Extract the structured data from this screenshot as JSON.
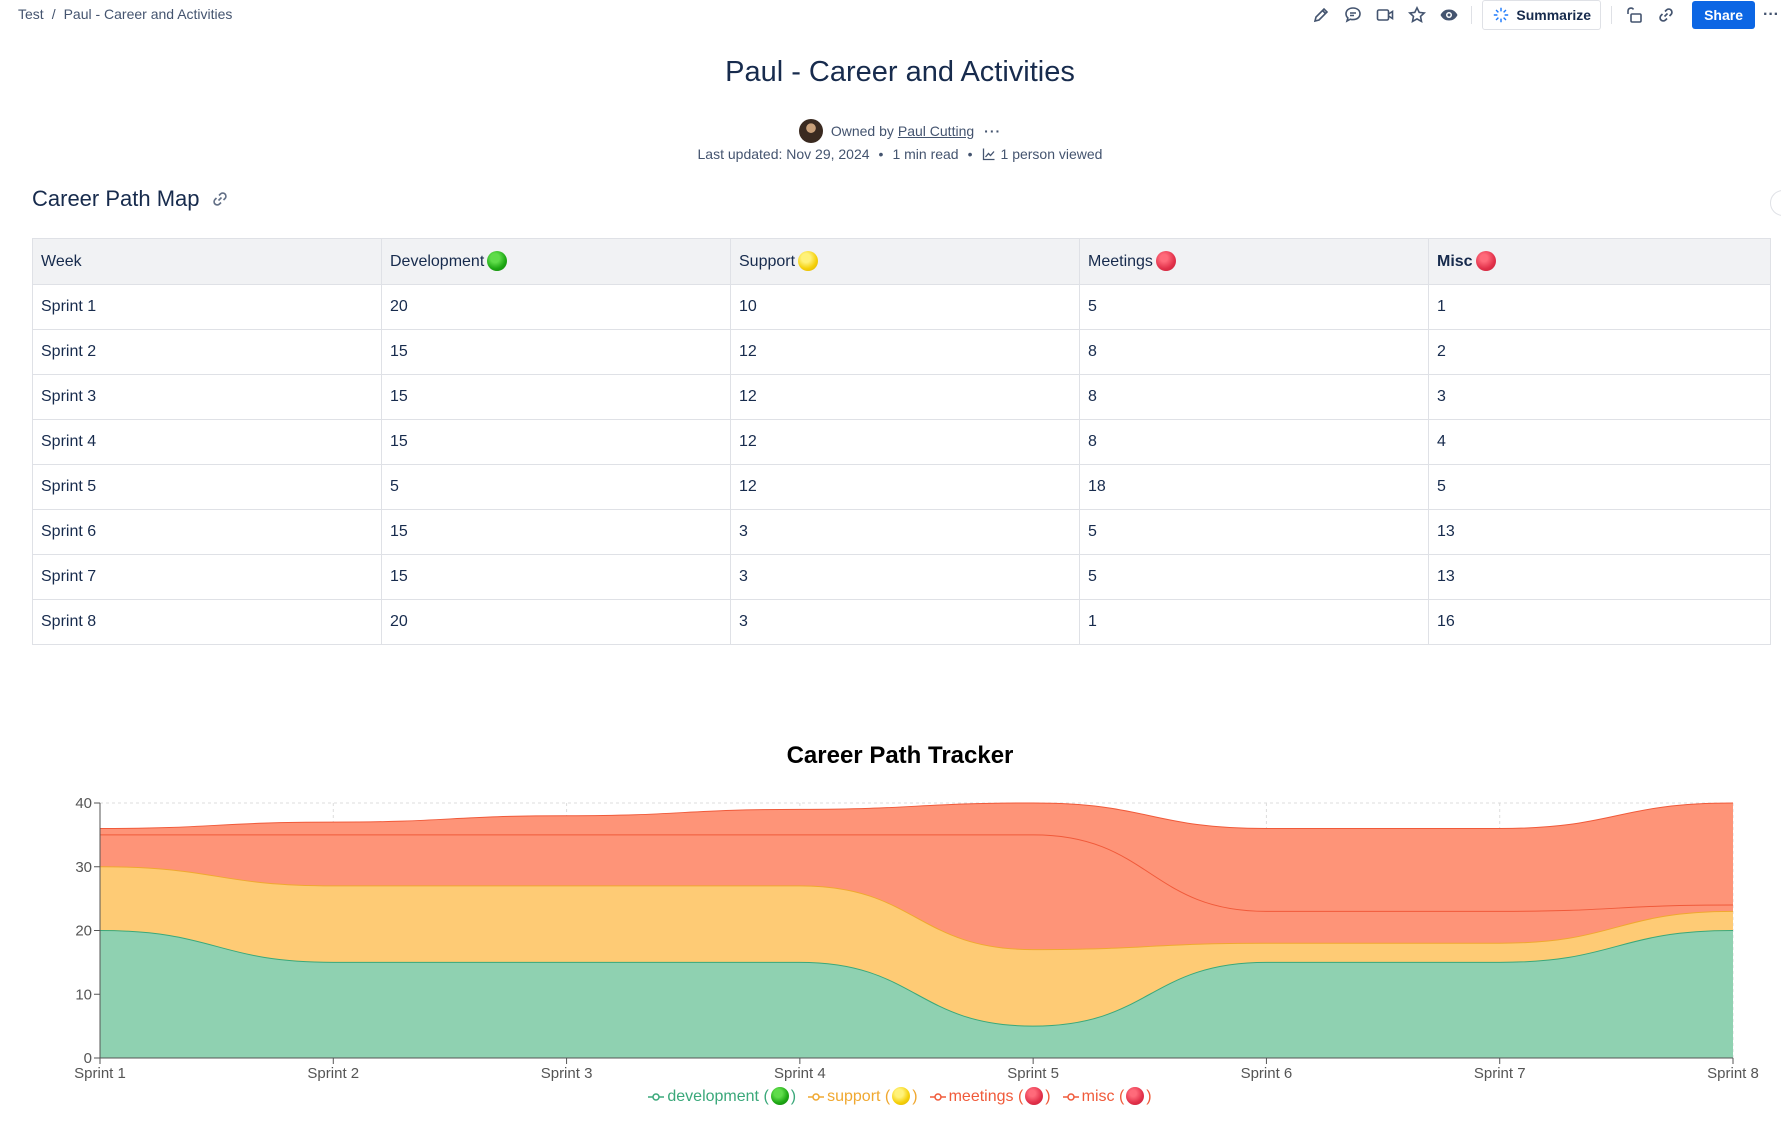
{
  "breadcrumb": {
    "space": "Test",
    "page": "Paul - Career and Activities"
  },
  "toolbar": {
    "summarize_label": "Summarize",
    "share_label": "Share"
  },
  "page": {
    "title": "Paul - Career and Activities",
    "owned_by_label": "Owned by",
    "owner_name": "Paul Cutting",
    "last_updated": "Last updated: Nov 29, 2024",
    "read_time": "1 min read",
    "views": "1 person viewed"
  },
  "section": {
    "heading": "Career Path Map"
  },
  "table": {
    "headers": [
      "Week",
      "Development",
      "Support",
      "Meetings",
      "Misc"
    ],
    "header_dots": [
      "",
      "green",
      "yellow",
      "red",
      "red"
    ],
    "rows": [
      [
        "Sprint 1",
        "20",
        "10",
        "5",
        "1"
      ],
      [
        "Sprint 2",
        "15",
        "12",
        "8",
        "2"
      ],
      [
        "Sprint 3",
        "15",
        "12",
        "8",
        "3"
      ],
      [
        "Sprint 4",
        "15",
        "12",
        "8",
        "4"
      ],
      [
        "Sprint 5",
        "5",
        "12",
        "18",
        "5"
      ],
      [
        "Sprint 6",
        "15",
        "3",
        "5",
        "13"
      ],
      [
        "Sprint 7",
        "15",
        "3",
        "5",
        "13"
      ],
      [
        "Sprint 8",
        "20",
        "3",
        "1",
        "16"
      ]
    ]
  },
  "chart_data": {
    "type": "area",
    "stacked": true,
    "title": "Career Path Tracker",
    "categories": [
      "Sprint 1",
      "Sprint 2",
      "Sprint 3",
      "Sprint 4",
      "Sprint 5",
      "Sprint 6",
      "Sprint 7",
      "Sprint 8"
    ],
    "ylim": [
      0,
      40
    ],
    "yticks": [
      0,
      10,
      20,
      30,
      40
    ],
    "grid": true,
    "legend_position": "bottom",
    "series": [
      {
        "name": "development",
        "values": [
          20,
          15,
          15,
          15,
          5,
          15,
          15,
          20
        ],
        "line_color": "#3aa87a",
        "fill_color": "#8fd1b1",
        "dot": "green"
      },
      {
        "name": "support",
        "values": [
          10,
          12,
          12,
          12,
          12,
          3,
          3,
          3
        ],
        "line_color": "#f0a830",
        "fill_color": "#fecb75",
        "dot": "yellow"
      },
      {
        "name": "meetings",
        "values": [
          5,
          8,
          8,
          8,
          18,
          5,
          5,
          1
        ],
        "line_color": "#f05a3a",
        "fill_color": "#fe9478",
        "dot": "red"
      },
      {
        "name": "misc",
        "values": [
          1,
          2,
          3,
          4,
          5,
          13,
          13,
          16
        ],
        "line_color": "#f05a3a",
        "fill_color": "#fe9478",
        "dot": "red"
      }
    ]
  }
}
